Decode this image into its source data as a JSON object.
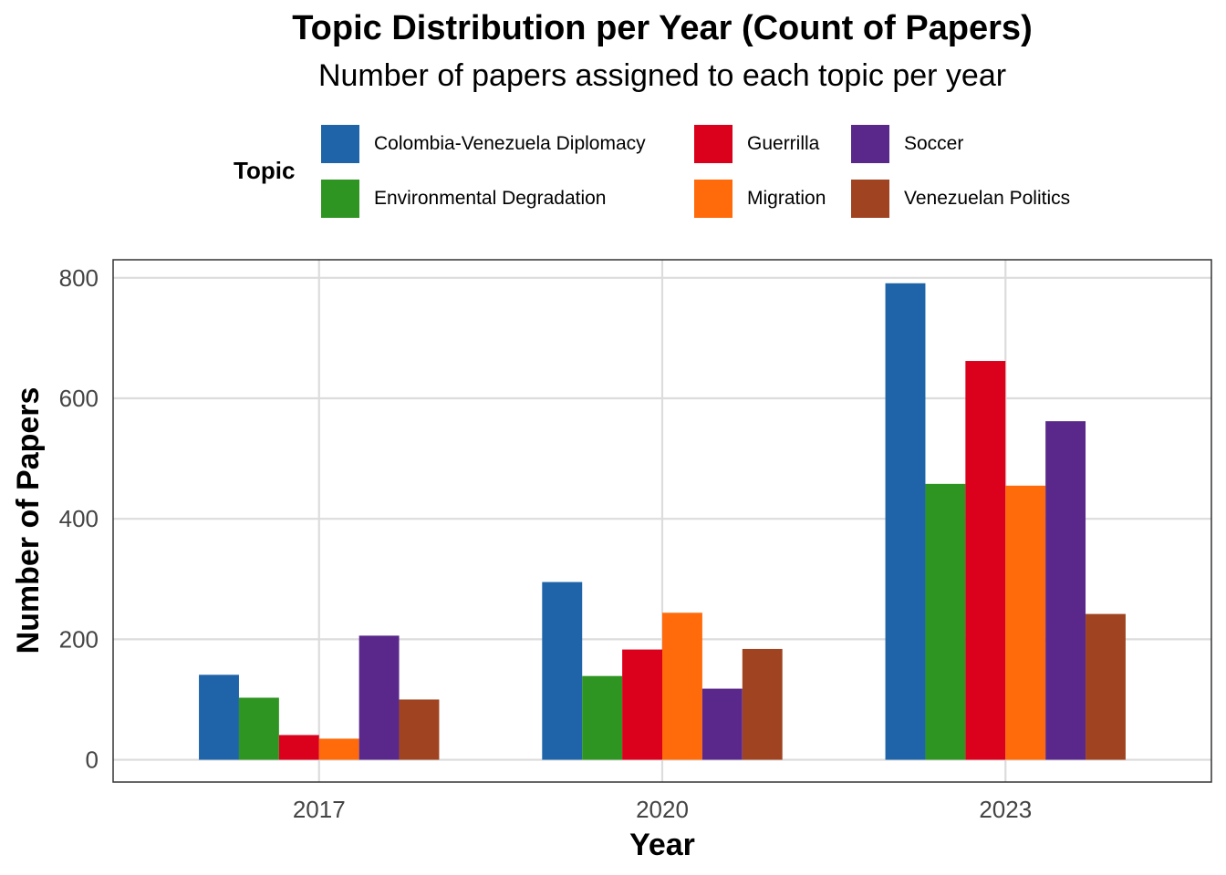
{
  "chart_data": {
    "type": "bar",
    "title": "Topic Distribution per Year (Count of Papers)",
    "subtitle": "Number of papers assigned to each topic per year",
    "xlabel": "Year",
    "ylabel": "Number of Papers",
    "legend_title": "Topic",
    "legend_position": "top",
    "grid": true,
    "categories": [
      "2017",
      "2020",
      "2023"
    ],
    "ylim": [
      -37,
      830
    ],
    "yticks": [
      0,
      200,
      400,
      600,
      800
    ],
    "series": [
      {
        "name": "Colombia-Venezuela Diplomacy",
        "color": "#1f63a8",
        "values": [
          141,
          295,
          791
        ]
      },
      {
        "name": "Environmental Degradation",
        "color": "#2e9422",
        "values": [
          103,
          139,
          458
        ]
      },
      {
        "name": "Guerrilla",
        "color": "#db001b",
        "values": [
          41,
          183,
          662
        ]
      },
      {
        "name": "Migration",
        "color": "#ff6a0a",
        "values": [
          35,
          244,
          455
        ]
      },
      {
        "name": "Soccer",
        "color": "#5a288a",
        "values": [
          206,
          118,
          562
        ]
      },
      {
        "name": "Venezuelan Politics",
        "color": "#a04321",
        "values": [
          100,
          184,
          242
        ]
      }
    ]
  }
}
